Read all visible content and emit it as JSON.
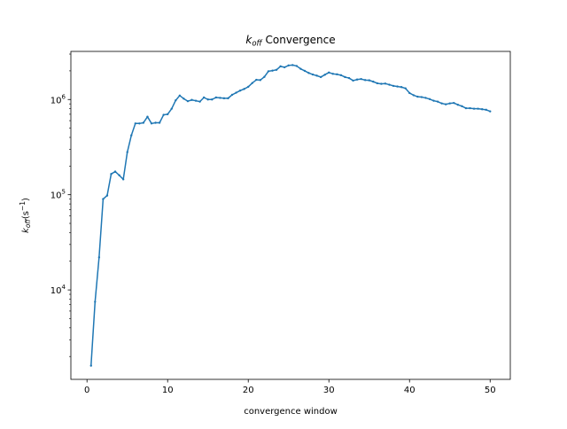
{
  "chart_data": {
    "type": "line",
    "title": {
      "k_base": "k",
      "k_sub": "off",
      "rest": "Convergence"
    },
    "xlabel": "convergence window",
    "ylabel": {
      "k_base": "k",
      "k_sub": "off",
      "unit_open": "(s",
      "unit_exp": "−1",
      "unit_close": ")"
    },
    "x_scale": "linear",
    "y_scale": "log",
    "xlim": [
      -2,
      52.5
    ],
    "ylim": [
      1150,
      3200000
    ],
    "x_ticks": [
      0,
      10,
      20,
      30,
      40,
      50
    ],
    "x_tick_labels": [
      "0",
      "10",
      "20",
      "30",
      "40",
      "50"
    ],
    "y_ticks": [
      10000,
      100000,
      1000000
    ],
    "y_tick_labels": [
      {
        "base": "10",
        "exp": "4"
      },
      {
        "base": "10",
        "exp": "5"
      },
      {
        "base": "10",
        "exp": "6"
      }
    ],
    "grid": false,
    "color": "#1f77b4",
    "series": [
      {
        "x": [
          0.5,
          1.0,
          1.5,
          2.0,
          2.5,
          3.0,
          3.5,
          4.0,
          4.5,
          5.0,
          5.5,
          6.0,
          6.5,
          7.0,
          7.5,
          8.0,
          8.5,
          9.0,
          9.5,
          10.0,
          10.5,
          11.0,
          11.5,
          12.0,
          12.5,
          13.0,
          13.5,
          14.0,
          14.5,
          15.0,
          15.5,
          16.0,
          16.5,
          17.0,
          17.5,
          18.0,
          18.5,
          19.0,
          19.5,
          20.0,
          20.5,
          21.0,
          21.5,
          22.0,
          22.5,
          23.0,
          23.5,
          24.0,
          24.5,
          25.0,
          25.5,
          26.0,
          26.5,
          27.0,
          27.5,
          28.0,
          28.5,
          29.0,
          29.5,
          30.0,
          30.5,
          31.0,
          31.5,
          32.0,
          32.5,
          33.0,
          33.5,
          34.0,
          34.5,
          35.0,
          35.5,
          36.0,
          36.5,
          37.0,
          37.5,
          38.0,
          38.5,
          39.0,
          39.5,
          40.0,
          40.5,
          41.0,
          41.5,
          42.0,
          42.5,
          43.0,
          43.5,
          44.0,
          44.5,
          45.0,
          45.5,
          46.0,
          46.5,
          47.0,
          47.5,
          48.0,
          48.5,
          49.0,
          49.5,
          50.0
        ],
        "y": [
          1600,
          7500,
          22000,
          90000,
          98000,
          165000,
          175000,
          160000,
          145000,
          280000,
          420000,
          560000,
          560000,
          570000,
          660000,
          560000,
          570000,
          570000,
          690000,
          700000,
          800000,
          980000,
          1100000,
          1020000,
          960000,
          990000,
          970000,
          950000,
          1050000,
          1000000,
          1000000,
          1050000,
          1040000,
          1030000,
          1030000,
          1120000,
          1180000,
          1240000,
          1290000,
          1360000,
          1490000,
          1610000,
          1600000,
          1730000,
          1980000,
          2010000,
          2050000,
          2230000,
          2180000,
          2280000,
          2300000,
          2250000,
          2100000,
          2000000,
          1900000,
          1830000,
          1780000,
          1720000,
          1820000,
          1920000,
          1860000,
          1840000,
          1800000,
          1720000,
          1680000,
          1580000,
          1620000,
          1640000,
          1600000,
          1590000,
          1540000,
          1480000,
          1460000,
          1470000,
          1430000,
          1390000,
          1370000,
          1350000,
          1310000,
          1170000,
          1110000,
          1070000,
          1060000,
          1040000,
          1010000,
          970000,
          950000,
          910000,
          890000,
          910000,
          920000,
          880000,
          850000,
          810000,
          810000,
          800000,
          800000,
          790000,
          780000,
          750000
        ]
      }
    ]
  }
}
